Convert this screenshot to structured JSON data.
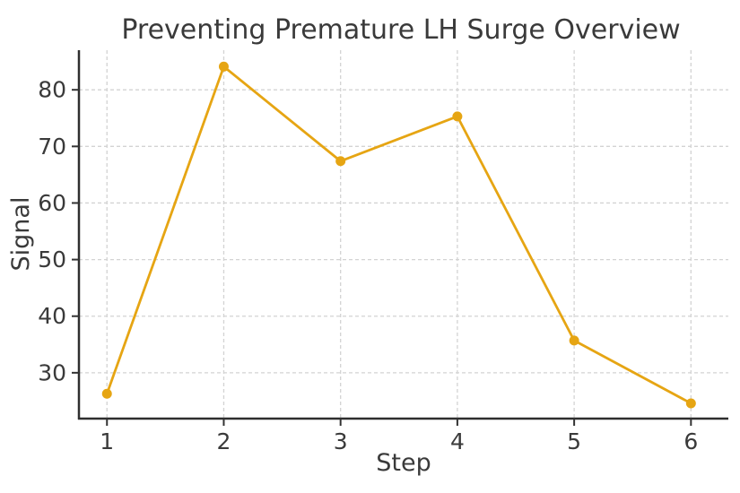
{
  "chart_data": {
    "type": "line",
    "title": "Preventing Premature LH Surge Overview",
    "xlabel": "Step",
    "ylabel": "Signal",
    "x": [
      1,
      2,
      3,
      4,
      5,
      6
    ],
    "series": [
      {
        "name": "Signal",
        "values": [
          26.3,
          84.1,
          67.4,
          75.3,
          35.7,
          24.6
        ]
      }
    ],
    "xticks": [
      1,
      2,
      3,
      4,
      5,
      6
    ],
    "yticks": [
      30,
      40,
      50,
      60,
      70,
      80
    ],
    "xlim": [
      0.76,
      6.32
    ],
    "ylim": [
      21.9,
      87.0
    ],
    "grid": true,
    "grid_style": "dashed",
    "legend": "none",
    "marker": "circle"
  },
  "colors": {
    "line": "#E6A513",
    "marker": "#E6A513",
    "grid": "#D3D3D3",
    "spine": "#2E2E2E",
    "tick": "#333333",
    "text": "#3A3A3A",
    "background": "#FFFFFF"
  }
}
